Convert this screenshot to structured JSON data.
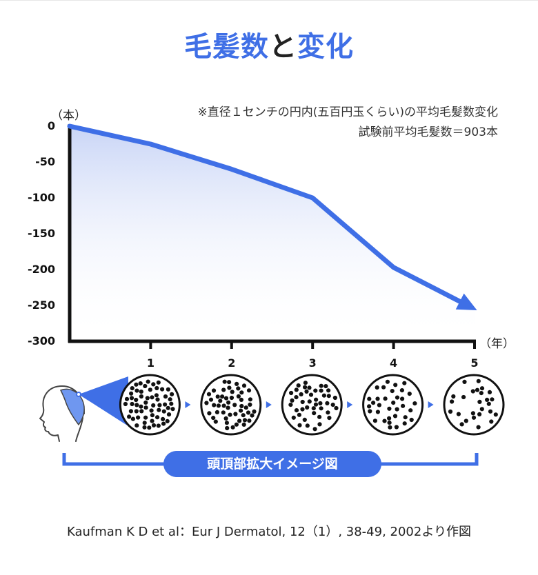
{
  "title": {
    "part1": "毛髪数",
    "part2": "と",
    "part3": "変化"
  },
  "notes": {
    "line1": "※直径１センチの円内(五百円玉くらい)の平均毛髪数変化",
    "line2": "試験前平均毛髪数＝903本"
  },
  "legend_label": "頭頂部拡大イメージ図",
  "source": "Kaufman K D et al：Eur J Dermatol, 12（1）, 38-49, 2002より作図",
  "colors": {
    "accent": "#3f6fe6",
    "axis": "#111111",
    "dot": "#111111"
  },
  "chart_data": {
    "type": "line",
    "x": [
      0,
      1,
      2,
      3,
      4,
      5
    ],
    "series": [
      {
        "values": [
          0,
          -25,
          -60,
          -100,
          -197,
          -255
        ]
      }
    ],
    "xlabel": "（年）",
    "ylabel": "（本）",
    "xticks": [
      "1",
      "2",
      "3",
      "4",
      "5"
    ],
    "yticks": [
      "0",
      "-50",
      "-100",
      "-150",
      "-200",
      "-250",
      "-300"
    ],
    "ylim": [
      -300,
      0
    ],
    "xlim": [
      0,
      5
    ],
    "grid": false,
    "area_fill": true,
    "end_arrow": true
  },
  "hair_density": [
    60,
    52,
    44,
    34,
    26
  ]
}
